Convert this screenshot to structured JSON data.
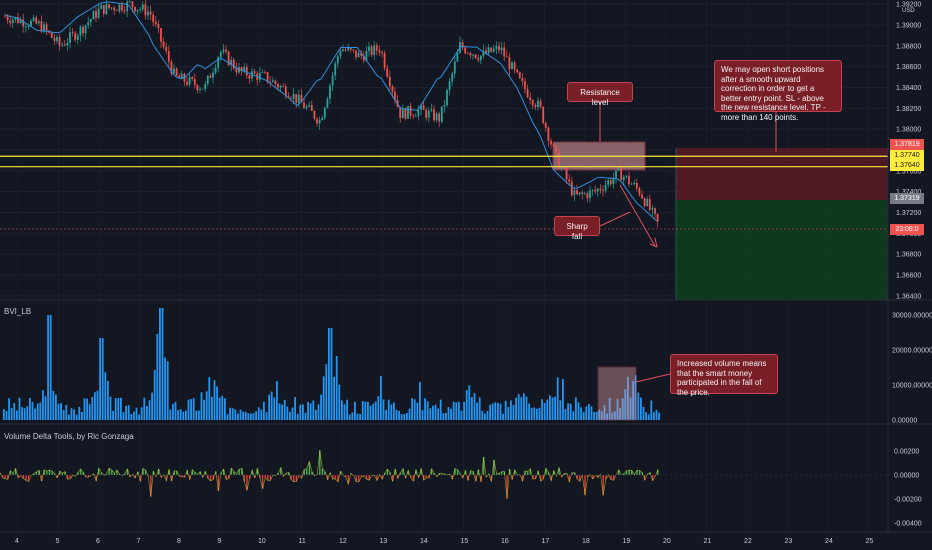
{
  "chart_data": {
    "type": "line",
    "price_pane": {
      "currency": "USD",
      "y_ticks": [
        "1.39200",
        "1.39000",
        "1.38800",
        "1.38600",
        "1.38400",
        "1.38200",
        "1.38000",
        "1.37800",
        "1.37600",
        "1.37400",
        "1.37200",
        "1.37000",
        "1.36800",
        "1.36600",
        "1.36400"
      ],
      "ylim": [
        1.3636,
        1.3924
      ],
      "resistance_upper": 1.3774,
      "resistance_lower": 1.3764,
      "stop_loss": 1.37819,
      "current_price": 1.37,
      "target": 1.37319
    },
    "volume_pane": {
      "title": "BVI_LB",
      "y_ticks": [
        "30000.00000",
        "20000.00000",
        "10000.00000",
        "0.00000"
      ]
    },
    "delta_pane": {
      "title": "Volume Delta Tools, by Ric Gonzaga",
      "y_ticks": [
        "0.00200",
        "0.00000",
        "-0.00200",
        "-0.00400"
      ]
    },
    "x_ticks": [
      "4",
      "5",
      "6",
      "7",
      "8",
      "9",
      "10",
      "11",
      "12",
      "13",
      "14",
      "15",
      "16",
      "17",
      "18",
      "19",
      "20",
      "21",
      "22",
      "23",
      "24",
      "25"
    ]
  },
  "price_tags": {
    "sl": "1.37819",
    "res_hi": "1.37740",
    "res_lo": "1.37640",
    "tgt": "1.37319",
    "cur": "23:08:0"
  },
  "annotations": {
    "resistance": "Resistance level",
    "sharp_fall": "Sharp fall",
    "trade_idea": "We may open short positions after a smooth upward correction in order to get a better entry point. SL - above the new resistance level. TP - more than 140 points.",
    "volume_note": "Increased volume means that the smart money participated in the fall of the price."
  },
  "colors": {
    "background": "#131722",
    "up": "#26a69a",
    "down": "#ef5350",
    "ma": "#2f8fdc",
    "resistance": "#ffeb3b",
    "annotation": "#7a1f27",
    "volume": "#2196f3",
    "delta_green": "#4caf50",
    "delta_red": "#e53935"
  }
}
